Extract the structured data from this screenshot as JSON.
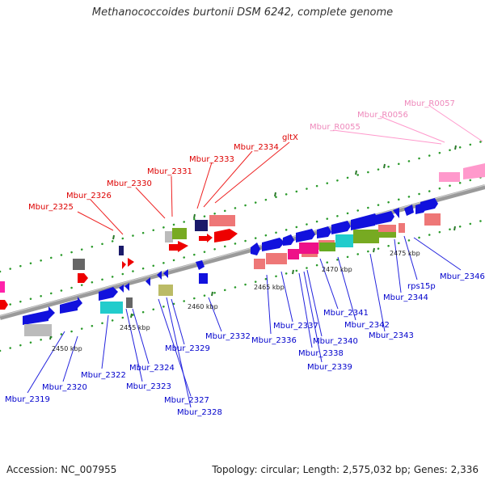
{
  "title": "Methanococcoides burtonii DSM 6242, complete genome",
  "accession_label": "Accession: NC_007955",
  "topology_label": "Topology: circular; Length: 2,575,032 bp; Genes: 2,336",
  "kbp_ticks": [
    "2450 kbp",
    "2455 kbp",
    "2460 kbp",
    "2465 kbp",
    "2470 kbp",
    "2475 kbp"
  ],
  "colors": {
    "forward_label": "#cc0000",
    "reverse_label": "#0000cc",
    "rna_label": "#ee88bb",
    "backbone": "#888888",
    "tick_dots": "#229922"
  },
  "forward_labels": [
    "Mbur_2325",
    "Mbur_2326",
    "Mbur_2330",
    "Mbur_2331",
    "Mbur_2333",
    "Mbur_2334",
    "gltX"
  ],
  "rna_labels": [
    "Mbur_R0055",
    "Mbur_R0056",
    "Mbur_R0057"
  ],
  "reverse_labels": [
    "Mbur_2319",
    "Mbur_2320",
    "Mbur_2322",
    "Mbur_2323",
    "Mbur_2324",
    "Mbur_2327",
    "Mbur_2328",
    "Mbur_2329",
    "Mbur_2332",
    "Mbur_2336",
    "Mbur_2337",
    "Mbur_2338",
    "Mbur_2339",
    "Mbur_2340",
    "Mbur_2341",
    "Mbur_2342",
    "Mbur_2343",
    "Mbur_2344",
    "rps15p",
    "Mbur_2346"
  ]
}
